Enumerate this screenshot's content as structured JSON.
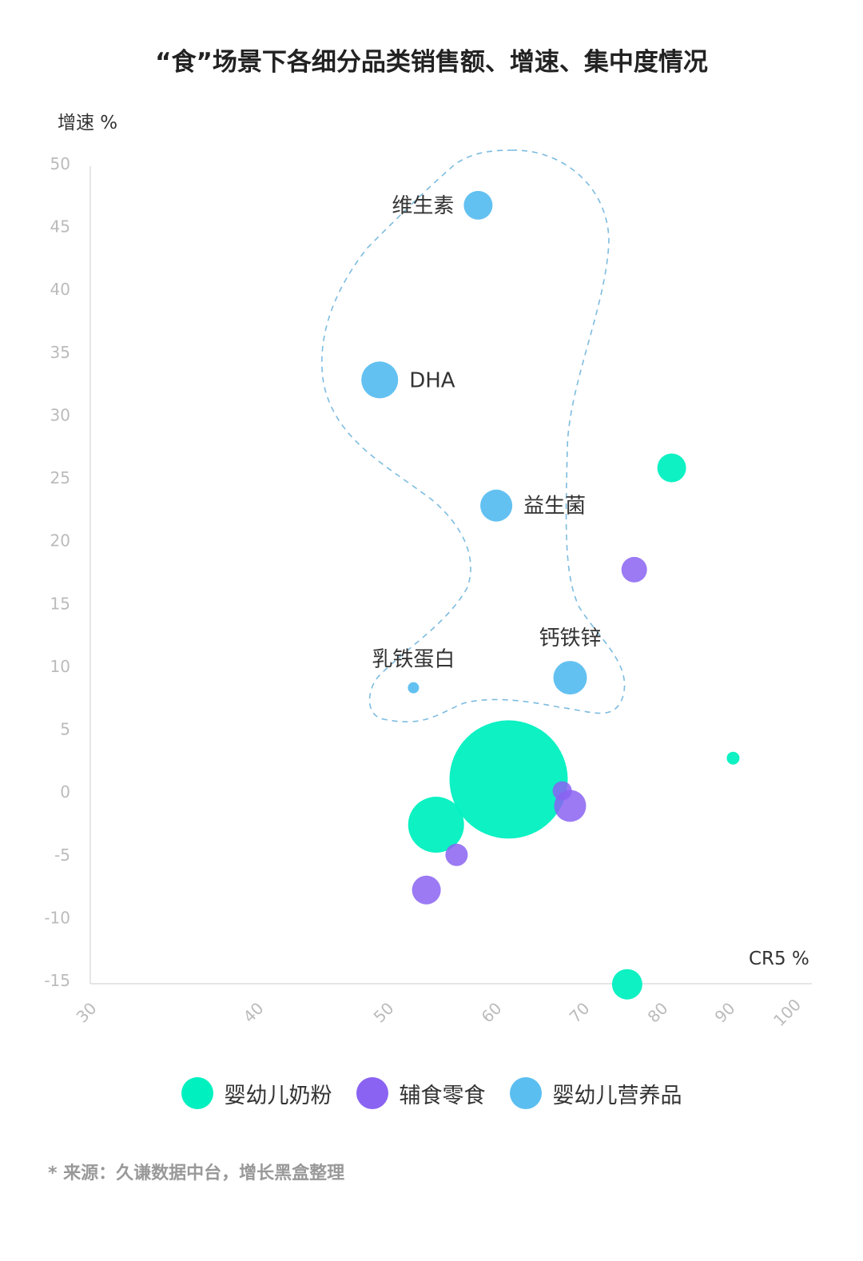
{
  "chart_data": {
    "type": "scatter",
    "subtype": "bubble",
    "title": "“食”场景下各细分品类销售额、增速、集中度情况",
    "xlabel": "CR5 %",
    "ylabel": "增速 %",
    "xticks": [
      30,
      40,
      50,
      60,
      70,
      80,
      90,
      100
    ],
    "yticks": [
      50,
      45,
      40,
      35,
      30,
      25,
      20,
      15,
      10,
      5,
      0,
      -5,
      -10,
      -15
    ],
    "xlim": [
      30,
      100
    ],
    "ylim": [
      -15,
      50
    ],
    "grid": false,
    "legend_position": "bottom",
    "series": [
      {
        "name": "婴幼儿奶粉",
        "color": "#00F0C0",
        "points": [
          {
            "x": 61.5,
            "y": 1.0,
            "size": 74
          },
          {
            "x": 54.5,
            "y": -2.6,
            "size": 35
          },
          {
            "x": 81.5,
            "y": 25.8,
            "size": 18
          },
          {
            "x": 90.7,
            "y": 2.7,
            "size": 8
          },
          {
            "x": 75.6,
            "y": -15.3,
            "size": 19
          }
        ]
      },
      {
        "name": "辅食零食",
        "color": "#8A63F2",
        "points": [
          {
            "x": 76.5,
            "y": 17.7,
            "size": 16
          },
          {
            "x": 68.5,
            "y": -1.1,
            "size": 20
          },
          {
            "x": 67.6,
            "y": 0.1,
            "size": 12
          },
          {
            "x": 56.4,
            "y": -5.0,
            "size": 14
          },
          {
            "x": 53.6,
            "y": -7.8,
            "size": 18
          }
        ]
      },
      {
        "name": "婴幼儿营养品",
        "color": "#5BBEF0",
        "points": [
          {
            "x": 58.4,
            "y": 46.7,
            "size": 18,
            "label": "维生素",
            "label_side": "left"
          },
          {
            "x": 49.4,
            "y": 32.8,
            "size": 23,
            "label": "DHA",
            "label_side": "right"
          },
          {
            "x": 60.1,
            "y": 22.8,
            "size": 20,
            "label": "益生菌",
            "label_side": "right"
          },
          {
            "x": 68.5,
            "y": 9.1,
            "size": 21,
            "label": "钙铁锌",
            "label_side": "top"
          },
          {
            "x": 52.4,
            "y": 8.3,
            "size": 7,
            "label": "乳铁蛋白",
            "label_side": "top"
          }
        ]
      }
    ]
  },
  "source": "* 来源：久谦数据中台，增长黑盒整理"
}
